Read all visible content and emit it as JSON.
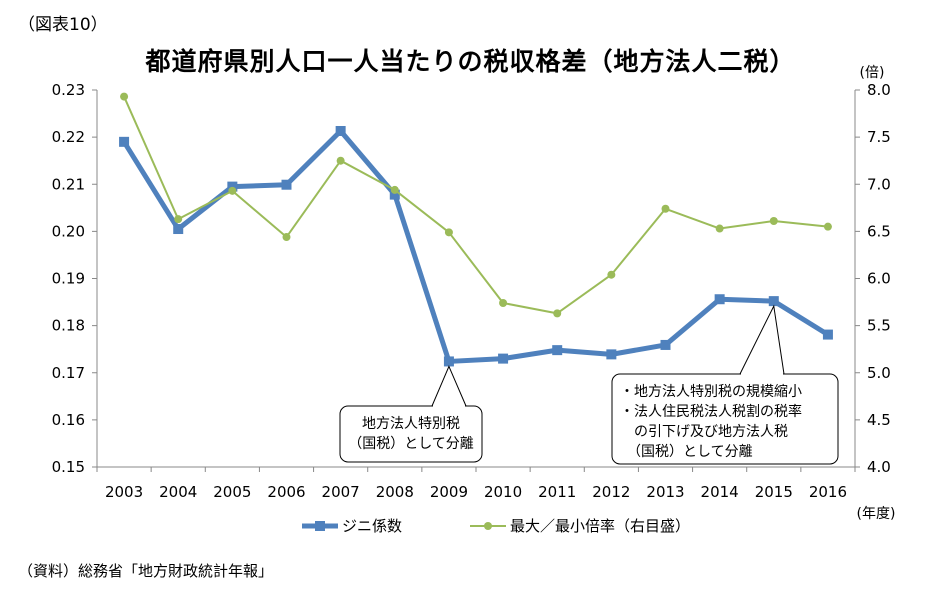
{
  "figure": {
    "number": "（図表10）",
    "title": "都道府県別人口一人当たりの税収格差（地方法人二税）",
    "source": "（資料）総務省「地方財政統計年報」"
  },
  "chart_data": {
    "type": "line",
    "x": [
      "2003",
      "2004",
      "2005",
      "2006",
      "2007",
      "2008",
      "2009",
      "2010",
      "2011",
      "2012",
      "2013",
      "2014",
      "2015",
      "2016"
    ],
    "x_unit": "(年度)",
    "left_axis": {
      "ylim": [
        0.15,
        0.23
      ],
      "ticks": [
        "0.15",
        "0.16",
        "0.17",
        "0.18",
        "0.19",
        "0.20",
        "0.21",
        "0.22",
        "0.23"
      ]
    },
    "right_axis": {
      "unit": "(倍)",
      "ylim": [
        4.0,
        8.0
      ],
      "ticks": [
        "4.0",
        "4.5",
        "5.0",
        "5.5",
        "6.0",
        "6.5",
        "7.0",
        "7.5",
        "8.0"
      ]
    },
    "series": [
      {
        "name": "ジニ係数",
        "axis": "left",
        "color": "#4f81bd",
        "values": [
          0.219,
          0.2005,
          0.2095,
          0.2099,
          0.2213,
          0.2078,
          0.1724,
          0.173,
          0.1748,
          0.1739,
          0.1759,
          0.1856,
          0.1852,
          0.1781
        ]
      },
      {
        "name": "最大／最小倍率（右目盛）",
        "axis": "right",
        "color": "#9bbb59",
        "values": [
          7.93,
          6.63,
          6.93,
          6.44,
          7.25,
          6.94,
          6.49,
          5.74,
          5.63,
          6.04,
          6.74,
          6.53,
          6.61,
          6.55
        ]
      }
    ],
    "grid": false,
    "legend_position": "bottom",
    "annotations": [
      {
        "lines": [
          "地方法人特別税",
          "（国税）として分離"
        ],
        "target_x": "2009"
      },
      {
        "lines": [
          "・地方法人特別税の規模縮小",
          "・法人住民税法人税割の税率",
          "　の引下げ及び地方法人税",
          "　（国税）として分離"
        ],
        "target_x": "2015"
      }
    ]
  }
}
